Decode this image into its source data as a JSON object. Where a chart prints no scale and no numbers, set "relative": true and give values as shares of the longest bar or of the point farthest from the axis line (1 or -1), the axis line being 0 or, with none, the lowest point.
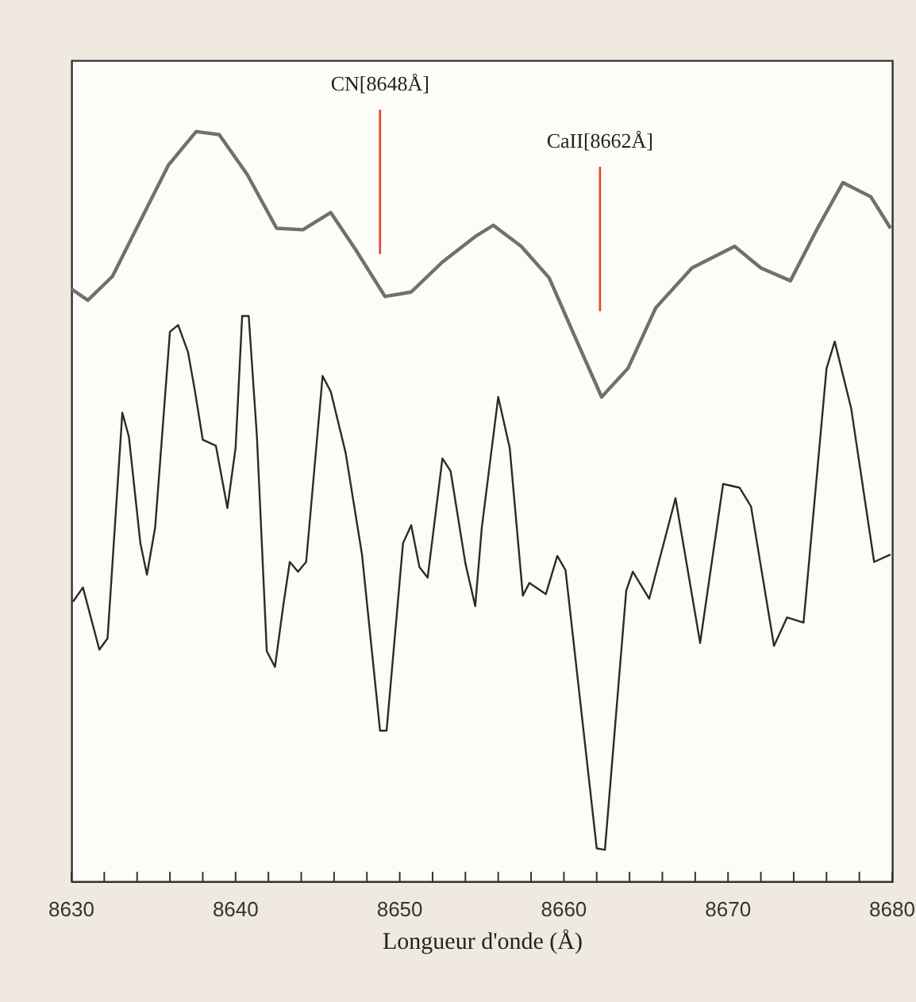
{
  "chart_data": {
    "type": "line",
    "relative": true,
    "xlabel": "Longueur d'onde (Å)",
    "xlim": [
      8630,
      8680
    ],
    "xticks": [
      8630,
      {
        "value": 8632,
        "label": null
      },
      {
        "value": 8634,
        "label": null
      },
      {
        "value": 8636,
        "label": null
      },
      {
        "value": 8638,
        "label": null
      },
      8640,
      {
        "value": 8642,
        "label": null
      },
      {
        "value": 8644,
        "label": null
      },
      {
        "value": 8646,
        "label": null
      },
      {
        "value": 8648,
        "label": null
      },
      8650,
      {
        "value": 8652,
        "label": null
      },
      {
        "value": 8654,
        "label": null
      },
      {
        "value": 8656,
        "label": null
      },
      {
        "value": 8658,
        "label": null
      },
      8660,
      {
        "value": 8662,
        "label": null
      },
      {
        "value": 8664,
        "label": null
      },
      {
        "value": 8666,
        "label": null
      },
      {
        "value": 8668,
        "label": null
      },
      8670,
      {
        "value": 8672,
        "label": null
      },
      {
        "value": 8674,
        "label": null
      },
      {
        "value": 8676,
        "label": null
      },
      {
        "value": 8678,
        "label": null
      },
      8680
    ],
    "grid": false,
    "marker": "none",
    "line_style": "solid",
    "series": [
      {
        "color": "#707070",
        "x": [
          8630,
          8631.0,
          8632.5,
          8634.2,
          8635.9,
          8637.6,
          8639.0,
          8640.7,
          8642.5,
          8644.1,
          8645.8,
          8647.3,
          8649.1,
          8650.7,
          8652.6,
          8654.6,
          8655.7,
          8657.4,
          8659.1,
          8660.8,
          8662.3,
          8663.9,
          8665.6,
          8667.8,
          8670.4,
          8672.0,
          8673.8,
          8675.4,
          8677.0,
          8678.7,
          8679.9
        ],
        "values": [
          0.79,
          0.775,
          0.807,
          0.881,
          0.955,
          1,
          0.996,
          0.943,
          0.871,
          0.869,
          0.892,
          0.843,
          0.78,
          0.786,
          0.826,
          0.86,
          0.875,
          0.847,
          0.805,
          0.72,
          0.646,
          0.684,
          0.765,
          0.818,
          0.847,
          0.818,
          0.801,
          0.869,
          0.932,
          0.913,
          0.871
        ]
      },
      {
        "color": "#2e2a28",
        "x": [
          8630.1,
          8630.7,
          8631.7,
          8632.2,
          8633.1,
          8633.5,
          8634.2,
          8634.6,
          8635.1,
          8636.0,
          8636.5,
          8637.1,
          8637.5,
          8638.0,
          8638.8,
          8639.5,
          8640.0,
          8640.4,
          8640.8,
          8641.3,
          8641.9,
          8642.4,
          8642.9,
          8643.3,
          8643.8,
          8644.3,
          8645.3,
          8645.8,
          8646.7,
          8647.7,
          8648.8,
          8649.2,
          8650.2,
          8650.7,
          8651.2,
          8651.7,
          8652.6,
          8653.1,
          8654.0,
          8654.6,
          8655.0,
          8656.0,
          8656.7,
          8657.5,
          8657.9,
          8658.9,
          8659.6,
          8660.1,
          8662.0,
          8662.5,
          8663.8,
          8664.2,
          8665.2,
          8666.8,
          8668.3,
          8669.7,
          8670.7,
          8671.4,
          8672.8,
          8673.6,
          8674.6,
          8676.0,
          8676.5,
          8677.5,
          8678.9,
          8679.9
        ],
        "values": [
          0.373,
          0.392,
          0.309,
          0.324,
          0.625,
          0.593,
          0.451,
          0.409,
          0.472,
          0.733,
          0.742,
          0.706,
          0.657,
          0.589,
          0.581,
          0.498,
          0.578,
          0.754,
          0.754,
          0.593,
          0.307,
          0.286,
          0.367,
          0.426,
          0.413,
          0.426,
          0.674,
          0.653,
          0.572,
          0.436,
          0.201,
          0.201,
          0.451,
          0.475,
          0.419,
          0.405,
          0.564,
          0.547,
          0.424,
          0.367,
          0.472,
          0.646,
          0.578,
          0.381,
          0.398,
          0.383,
          0.434,
          0.415,
          0.044,
          0.042,
          0.388,
          0.413,
          0.377,
          0.511,
          0.318,
          0.53,
          0.525,
          0.5,
          0.314,
          0.352,
          0.345,
          0.684,
          0.72,
          0.631,
          0.426,
          0.436
        ]
      }
    ],
    "ref_lines": [
      {
        "axis": "x",
        "value": 8648.8,
        "label": "CN[8648Å]",
        "color": "#e0452c"
      },
      {
        "axis": "x",
        "value": 8662.2,
        "label": "CaII[8662Å]",
        "color": "#e0452c"
      }
    ]
  }
}
